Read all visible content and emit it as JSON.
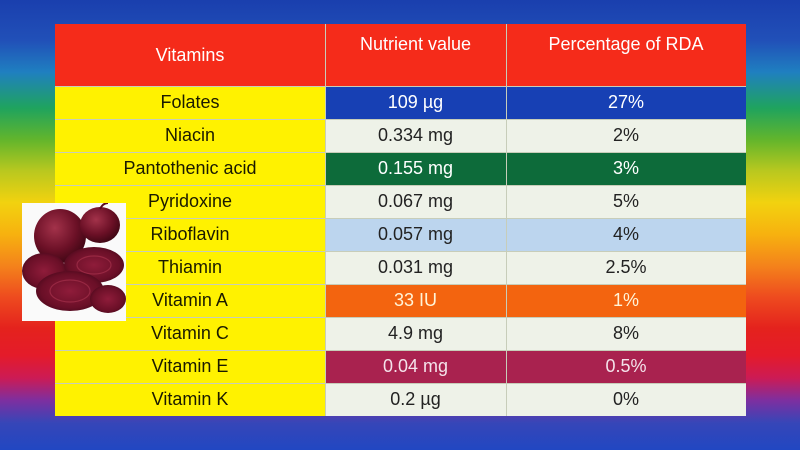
{
  "table": {
    "headers": [
      "Vitamins",
      "Nutrient value",
      "Percentage of RDA"
    ],
    "rows": [
      {
        "name": "Folates",
        "value": "109 µg",
        "rda": "27%",
        "bg": "#1740b4",
        "fg": "#ffffff"
      },
      {
        "name": "Niacin",
        "value": "0.334 mg",
        "rda": "2%",
        "bg": "#eef2e8",
        "fg": "#222222"
      },
      {
        "name": "Pantothenic acid",
        "value": "0.155 mg",
        "rda": "3%",
        "bg": "#0d6b3a",
        "fg": "#ffffff"
      },
      {
        "name": "Pyridoxine",
        "value": "0.067 mg",
        "rda": "5%",
        "bg": "#eef2e8",
        "fg": "#222222"
      },
      {
        "name": "Riboflavin",
        "value": "0.057 mg",
        "rda": "4%",
        "bg": "#bcd5ee",
        "fg": "#222222"
      },
      {
        "name": "Thiamin",
        "value": "0.031 mg",
        "rda": "2.5%",
        "bg": "#eef2e8",
        "fg": "#222222"
      },
      {
        "name": "Vitamin A",
        "value": "33 IU",
        "rda": "1%",
        "bg": "#f3640f",
        "fg": "#fff4d8"
      },
      {
        "name": "Vitamin C",
        "value": "4.9 mg",
        "rda": "8%",
        "bg": "#eef2e8",
        "fg": "#222222"
      },
      {
        "name": "Vitamin E",
        "value": "0.04 mg",
        "rda": "0.5%",
        "bg": "#a9224f",
        "fg": "#f4e2ea"
      },
      {
        "name": "Vitamin K",
        "value": "0.2 µg",
        "rda": "0%",
        "bg": "#eef2e8",
        "fg": "#222222"
      }
    ]
  },
  "image": {
    "subject": "sliced beetroot"
  }
}
